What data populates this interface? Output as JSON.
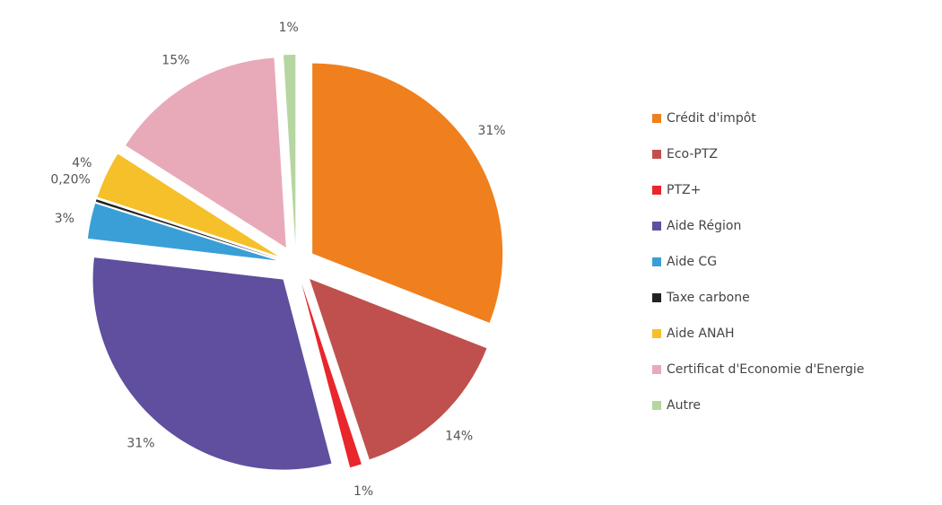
{
  "chart_data": {
    "type": "pie",
    "categories": [
      "Crédit d'impôt",
      "Eco-PTZ",
      "PTZ+",
      "Aide Région",
      "Aide CG",
      "Taxe carbone",
      "Aide ANAH",
      "Certificat d'Economie d'Energie",
      "Autre"
    ],
    "values": [
      31,
      14,
      1,
      31,
      3,
      0.2,
      4,
      15,
      1
    ],
    "value_labels": [
      "31%",
      "14%",
      "1%",
      "31%",
      "3%",
      "0,20%",
      "4%",
      "15%",
      "1%"
    ],
    "colors": [
      "#f07f1e",
      "#c0504d",
      "#e8262b",
      "#5f4f9e",
      "#3a9fd6",
      "#222222",
      "#f5c02a",
      "#e8aab8",
      "#b5d6a0"
    ],
    "legend": "right"
  }
}
